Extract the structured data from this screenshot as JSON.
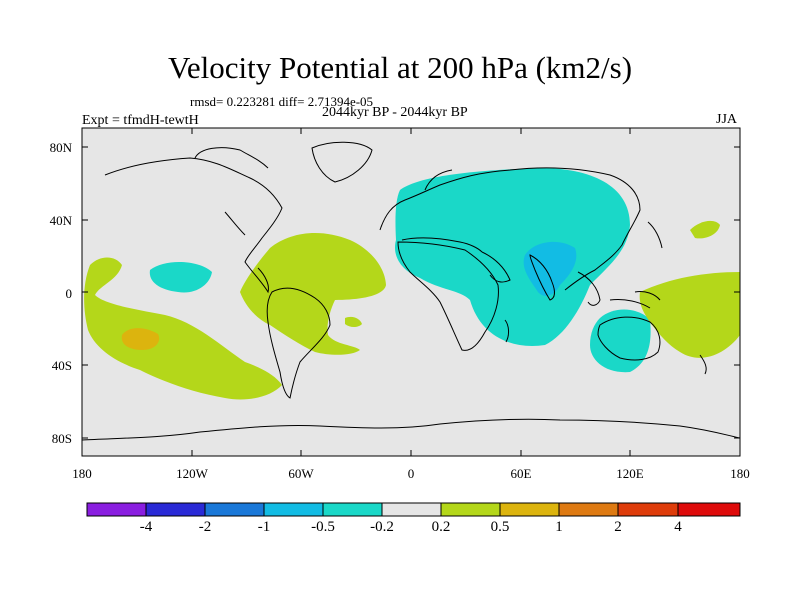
{
  "title": "Velocity Potential at 200 hPa (km2/s)",
  "stats": "rmsd= 0.223281 diff= 2.71394e-05",
  "experiment": "Expt = tfmdH-tewtH",
  "period": "2044kyr BP - 2044kyr BP",
  "season": "JJA",
  "y_axis": {
    "ticks": [
      "80N",
      "40N",
      "0",
      "40S",
      "80S"
    ]
  },
  "x_axis": {
    "ticks": [
      "180",
      "120W",
      "60W",
      "0",
      "60E",
      "120E",
      "180"
    ]
  },
  "colorbar": {
    "labels": [
      "-4",
      "-2",
      "-1",
      "-0.5",
      "-0.2",
      "0.2",
      "0.5",
      "1",
      "2",
      "4"
    ],
    "colors": [
      "#8a1ee0",
      "#2a2ad6",
      "#1a78d8",
      "#12bce4",
      "#1ad8c8",
      "#e6e6e6",
      "#b4d71a",
      "#dcb40e",
      "#de7a12",
      "#de3c0a",
      "#de0a0a"
    ]
  },
  "fields": {
    "background": "#e6e6e6",
    "positive_weak": "#b4d71a",
    "positive_mid": "#dcb40e",
    "positive_strong": "#de7a12",
    "negative_weak": "#1ad8c8",
    "negative_mid": "#12bce4"
  }
}
